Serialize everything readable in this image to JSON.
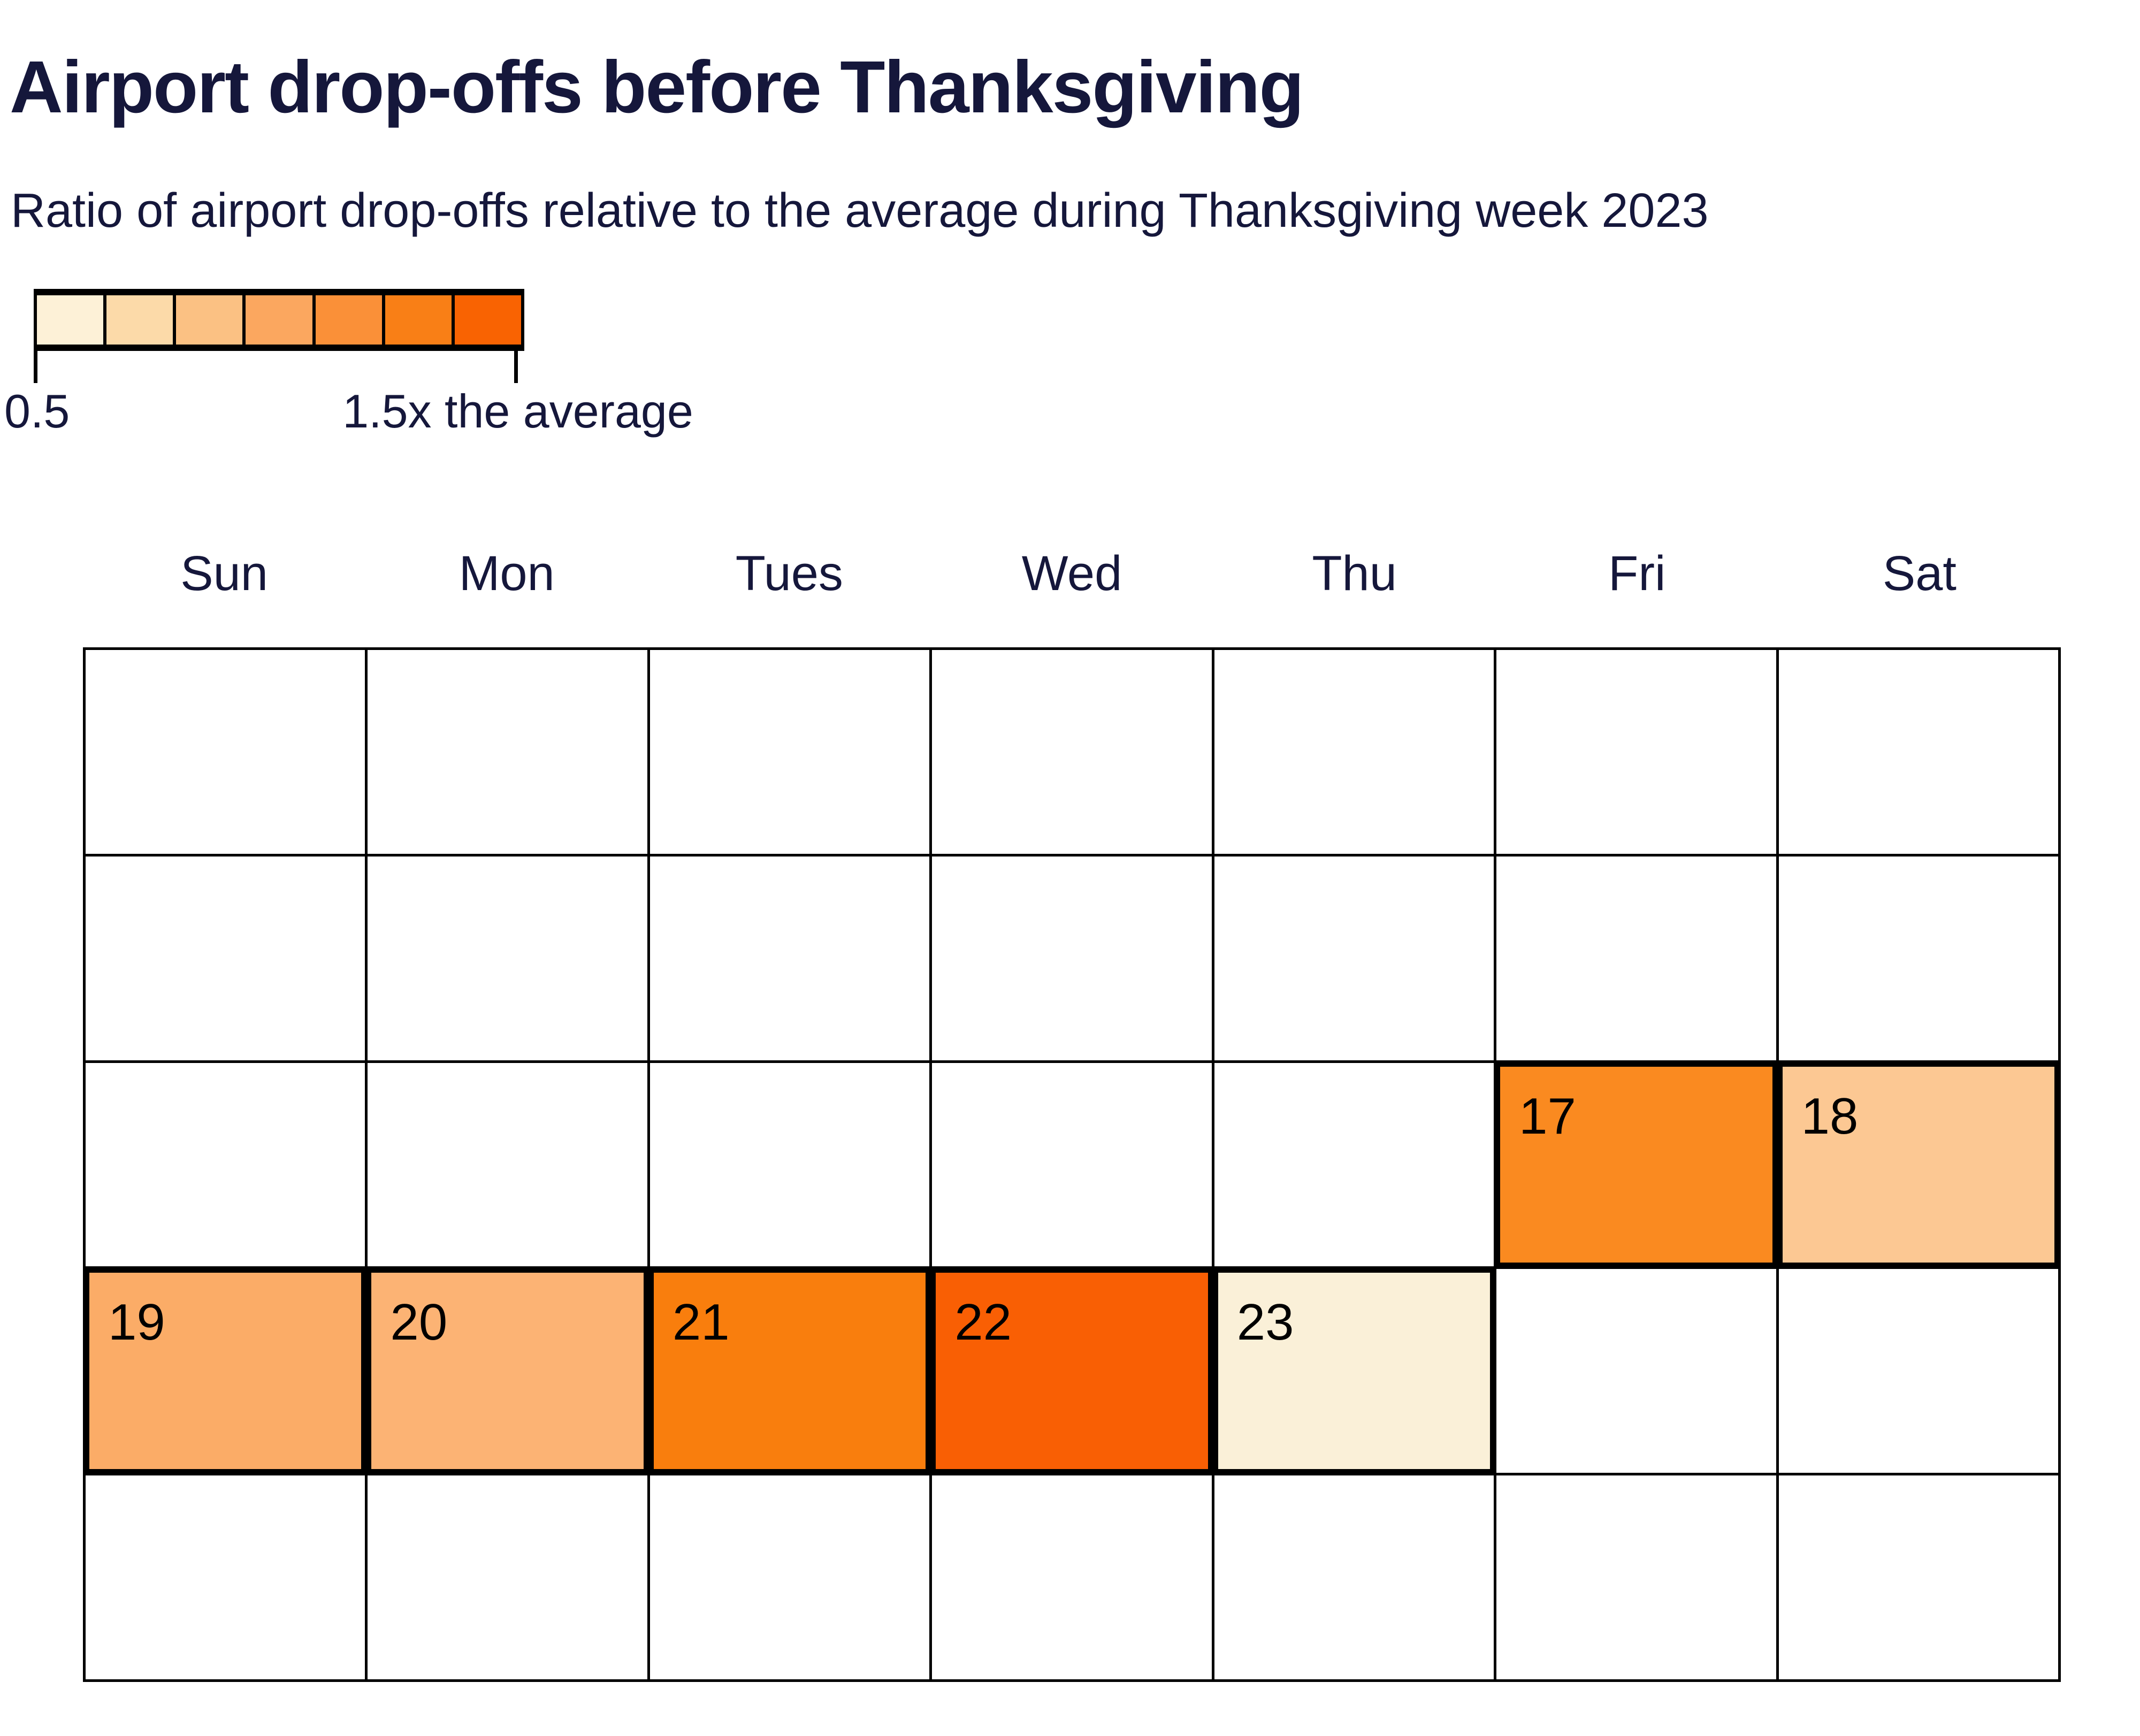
{
  "header": {
    "title": "Airport drop-offs before Thanksgiving",
    "subtitle": "Ratio of airport drop-offs relative to the average during Thanksgiving week 2023"
  },
  "legend": {
    "min_label": "0.5",
    "max_label": "1.5x the average",
    "swatches": [
      "#FDF1D7",
      "#FCDAA9",
      "#FBC183",
      "#FBA75F",
      "#FA9038",
      "#F97F16",
      "#F96302"
    ]
  },
  "calendar": {
    "weekdays": [
      "Sun",
      "Mon",
      "Tues",
      "Wed",
      "Thu",
      "Fri",
      "Sat"
    ],
    "rows": 5,
    "cols": 7,
    "days": [
      {
        "day": "17",
        "row": 2,
        "col": 5,
        "color": "#FA8A20"
      },
      {
        "day": "18",
        "row": 2,
        "col": 6,
        "color": "#FCC893"
      },
      {
        "day": "19",
        "row": 3,
        "col": 0,
        "color": "#FBAC67"
      },
      {
        "day": "20",
        "row": 3,
        "col": 1,
        "color": "#FCB374"
      },
      {
        "day": "21",
        "row": 3,
        "col": 2,
        "color": "#F97E0D"
      },
      {
        "day": "22",
        "row": 3,
        "col": 3,
        "color": "#F95F04"
      },
      {
        "day": "23",
        "row": 3,
        "col": 4,
        "color": "#FAF0D8"
      }
    ]
  },
  "chart_data": {
    "type": "heatmap",
    "title": "Airport drop-offs before Thanksgiving",
    "subtitle": "Ratio of airport drop-offs relative to the average during Thanksgiving week 2023",
    "layout": "calendar-week-grid",
    "x_categories": [
      "Sun",
      "Mon",
      "Tues",
      "Wed",
      "Thu",
      "Fri",
      "Sat"
    ],
    "legend": {
      "position": "top-left",
      "scale_min": 0.5,
      "scale_max": 1.5,
      "scale_min_label": "0.5",
      "scale_max_label": "1.5x the average",
      "bin_colors": [
        "#FDF1D7",
        "#FCDAA9",
        "#FBC183",
        "#FBA75F",
        "#FA9038",
        "#F97F16",
        "#F96302"
      ]
    },
    "points": [
      {
        "date": 17,
        "weekday": "Fri",
        "ratio_estimate": 1.25,
        "color": "#FA8A20"
      },
      {
        "date": 18,
        "weekday": "Sat",
        "ratio_estimate": 0.82,
        "color": "#FCC893"
      },
      {
        "date": 19,
        "weekday": "Sun",
        "ratio_estimate": 0.95,
        "color": "#FBAC67"
      },
      {
        "date": 20,
        "weekday": "Mon",
        "ratio_estimate": 0.93,
        "color": "#FCB374"
      },
      {
        "date": 21,
        "weekday": "Tues",
        "ratio_estimate": 1.3,
        "color": "#F97E0D"
      },
      {
        "date": 22,
        "weekday": "Wed",
        "ratio_estimate": 1.45,
        "color": "#F95F04"
      },
      {
        "date": 23,
        "weekday": "Thu",
        "ratio_estimate": 0.55,
        "color": "#FAF0D8"
      }
    ],
    "grid": {
      "rows": 5,
      "cols": 7,
      "empty_cells_color": "#FFFFFF",
      "gridline_color": "#000000"
    }
  }
}
